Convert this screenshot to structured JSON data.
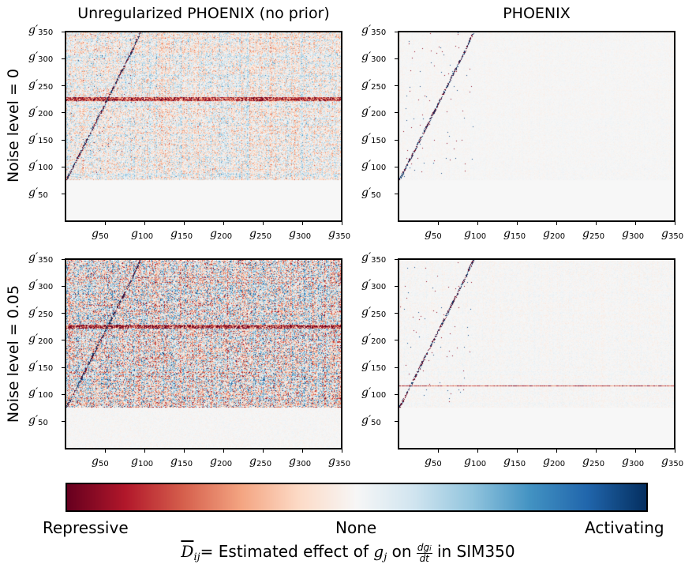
{
  "column_titles": [
    "Unregularized PHOENIX (no prior)",
    "PHOENIX"
  ],
  "row_labels": [
    "Noise level = 0",
    "Noise level = 0.05"
  ],
  "colorbar": {
    "labels": [
      "Repressive",
      "None",
      "Activating"
    ],
    "colors": [
      "#67001f",
      "#b2182b",
      "#d6604d",
      "#f4a582",
      "#fddbc7",
      "#f7f7f7",
      "#d1e5f0",
      "#92c5de",
      "#4393c3",
      "#2166ac",
      "#053061"
    ]
  },
  "caption": {
    "symbol": "D",
    "subscript": "ij",
    "text_before_var": "= Estimated effect of",
    "var": "g",
    "var_sub": "j",
    "on": "on",
    "frac_num": "dg",
    "frac_num_sub": "i",
    "frac_den": "dt",
    "text_after": "in SIM350"
  },
  "chart_data": [
    {
      "type": "heatmap",
      "title": "Unregularized PHOENIX (no prior)",
      "row_label": "Noise level = 0",
      "x_ticks": [
        "g50",
        "g100",
        "g150",
        "g200",
        "g250",
        "g300",
        "g350"
      ],
      "y_ticks": [
        "g'50",
        "g'100",
        "g'150",
        "g'200",
        "g'250",
        "g'300",
        "g'350"
      ],
      "xlim": [
        1,
        350
      ],
      "ylim": [
        1,
        350
      ],
      "description_values": {
        "nonzero_rows_from": 75,
        "strong_band_row": 225,
        "noise": 0.55,
        "diag_end_col": 95
      }
    },
    {
      "type": "heatmap",
      "title": "PHOENIX",
      "row_label": "Noise level = 0",
      "x_ticks": [
        "g50",
        "g100",
        "g150",
        "g200",
        "g250",
        "g300",
        "g350"
      ],
      "y_ticks": [
        "g'50",
        "g'100",
        "g'150",
        "g'200",
        "g'250",
        "g'300",
        "g'350"
      ],
      "xlim": [
        1,
        350
      ],
      "ylim": [
        1,
        350
      ],
      "description_values": {
        "nonzero_rows_from": 75,
        "strong_band_row": 0,
        "noise": 0.06,
        "diag_end_col": 95
      }
    },
    {
      "type": "heatmap",
      "title": "Unregularized PHOENIX (no prior)",
      "row_label": "Noise level = 0.05",
      "x_ticks": [
        "g50",
        "g100",
        "g150",
        "g200",
        "g250",
        "g300",
        "g350"
      ],
      "y_ticks": [
        "g'50",
        "g'100",
        "g'150",
        "g'200",
        "g'250",
        "g'300",
        "g'350"
      ],
      "xlim": [
        1,
        350
      ],
      "ylim": [
        1,
        350
      ],
      "description_values": {
        "nonzero_rows_from": 75,
        "strong_band_row": 225,
        "noise": 1.0,
        "diag_end_col": 95
      }
    },
    {
      "type": "heatmap",
      "title": "PHOENIX",
      "row_label": "Noise level = 0.05",
      "x_ticks": [
        "g50",
        "g100",
        "g150",
        "g200",
        "g250",
        "g300",
        "g350"
      ],
      "y_ticks": [
        "g'50",
        "g'100",
        "g'150",
        "g'200",
        "g'250",
        "g'300",
        "g'350"
      ],
      "xlim": [
        1,
        350
      ],
      "ylim": [
        1,
        350
      ],
      "description_values": {
        "nonzero_rows_from": 75,
        "strong_band_row": 115,
        "noise": 0.09,
        "diag_end_col": 95
      }
    }
  ]
}
